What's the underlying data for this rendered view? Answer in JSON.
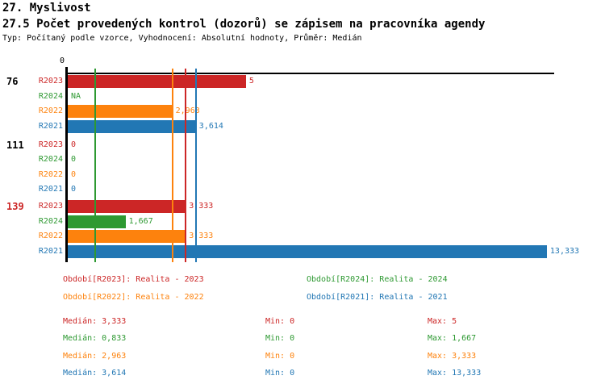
{
  "header": {
    "title": "27. Myslivost",
    "subtitle": "27.5 Počet provedených kontrol (dozorů) se zápisem na pracovníka agendy",
    "meta": "Typ: Počítaný podle vzorce, Vyhodnocení: Absolutní hodnoty, Průměr: Medián"
  },
  "chart_data": {
    "type": "bar",
    "orientation": "horizontal",
    "title": "27.5 Počet provedených kontrol (dozorů) se zápisem na pracovníka agendy",
    "x_axis": {
      "ticks": [
        {
          "value": 0,
          "label": "0"
        }
      ],
      "xlim": [
        0,
        13.53
      ],
      "grid": false
    },
    "series": [
      {
        "id": "R2023",
        "name": "Realita - 2023",
        "color": "#cc2626"
      },
      {
        "id": "R2024",
        "name": "Realita - 2024",
        "color": "#2e9932"
      },
      {
        "id": "R2022",
        "name": "Realita - 2022",
        "color": "#fd820d"
      },
      {
        "id": "R2021",
        "name": "Realita - 2021",
        "color": "#2277b4"
      }
    ],
    "groups": [
      {
        "label": "76",
        "label_color": "#000000",
        "values": [
          {
            "series": "R2023",
            "value": 5,
            "display": "5"
          },
          {
            "series": "R2024",
            "value": null,
            "display": "NA"
          },
          {
            "series": "R2022",
            "value": 2.963,
            "display": "2,963"
          },
          {
            "series": "R2021",
            "value": 3.614,
            "display": "3,614"
          }
        ]
      },
      {
        "label": "111",
        "label_color": "#000000",
        "values": [
          {
            "series": "R2023",
            "value": 0,
            "display": "0"
          },
          {
            "series": "R2024",
            "value": 0,
            "display": "0"
          },
          {
            "series": "R2022",
            "value": 0,
            "display": "0"
          },
          {
            "series": "R2021",
            "value": 0,
            "display": "0"
          }
        ]
      },
      {
        "label": "139",
        "label_color": "#cc2626",
        "values": [
          {
            "series": "R2023",
            "value": 3.333,
            "display": "3,333"
          },
          {
            "series": "R2024",
            "value": 1.667,
            "display": "1,667"
          },
          {
            "series": "R2022",
            "value": 3.333,
            "display": "3,333"
          },
          {
            "series": "R2021",
            "value": 13.333,
            "display": "13,333"
          }
        ]
      }
    ],
    "median_lines": [
      {
        "series": "R2023",
        "value": 3.333
      },
      {
        "series": "R2024",
        "value": 0.833
      },
      {
        "series": "R2022",
        "value": 2.963
      },
      {
        "series": "R2021",
        "value": 3.614
      }
    ],
    "legend": [
      {
        "series": "R2023",
        "text": "Období[R2023]: Realita - 2023"
      },
      {
        "series": "R2024",
        "text": "Období[R2024]: Realita - 2024"
      },
      {
        "series": "R2022",
        "text": "Období[R2022]: Realita - 2022"
      },
      {
        "series": "R2021",
        "text": "Období[R2021]: Realita - 2021"
      }
    ],
    "stats": {
      "labels": {
        "median": "Medián",
        "min": "Min",
        "max": "Max"
      },
      "rows": [
        {
          "series": "R2023",
          "median": "3,333",
          "min": "0",
          "max": "5"
        },
        {
          "series": "R2024",
          "median": "0,833",
          "min": "0",
          "max": "1,667"
        },
        {
          "series": "R2022",
          "median": "2,963",
          "min": "0",
          "max": "3,333"
        },
        {
          "series": "R2021",
          "median": "3,614",
          "min": "0",
          "max": "13,333"
        }
      ]
    }
  }
}
